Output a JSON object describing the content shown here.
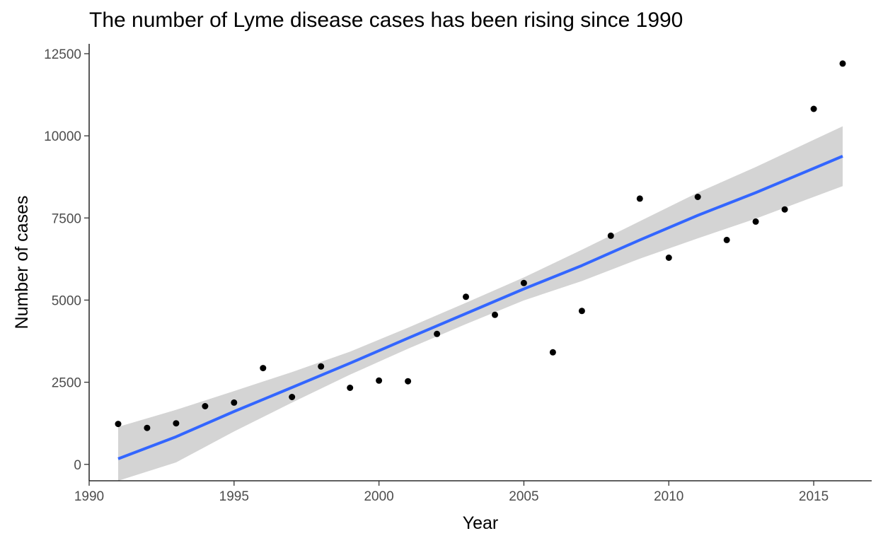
{
  "chart_data": {
    "type": "scatter",
    "title": "The number of Lyme disease cases has been rising since 1990",
    "xlabel": "Year",
    "ylabel": "Number of cases",
    "xlim": [
      1990,
      2017
    ],
    "ylim": [
      -500,
      12800
    ],
    "x_ticks": [
      1990,
      1995,
      2000,
      2005,
      2010,
      2015
    ],
    "y_ticks": [
      0,
      2500,
      5000,
      7500,
      10000,
      12500
    ],
    "grid": false,
    "colors": {
      "points": "#000000",
      "trend_line": "#3366ff",
      "confidence_band": "#d4d4d4",
      "axis": "#000000"
    },
    "points": [
      {
        "x": 1991,
        "y": 1230
      },
      {
        "x": 1992,
        "y": 1110
      },
      {
        "x": 1993,
        "y": 1250
      },
      {
        "x": 1994,
        "y": 1770
      },
      {
        "x": 1995,
        "y": 1880
      },
      {
        "x": 1996,
        "y": 2930
      },
      {
        "x": 1997,
        "y": 2050
      },
      {
        "x": 1998,
        "y": 2980
      },
      {
        "x": 1999,
        "y": 2330
      },
      {
        "x": 2000,
        "y": 2550
      },
      {
        "x": 2001,
        "y": 2530
      },
      {
        "x": 2002,
        "y": 3970
      },
      {
        "x": 2003,
        "y": 5100
      },
      {
        "x": 2004,
        "y": 4550
      },
      {
        "x": 2005,
        "y": 5520
      },
      {
        "x": 2006,
        "y": 3410
      },
      {
        "x": 2007,
        "y": 4670
      },
      {
        "x": 2008,
        "y": 6960
      },
      {
        "x": 2009,
        "y": 8090
      },
      {
        "x": 2010,
        "y": 6290
      },
      {
        "x": 2011,
        "y": 8140
      },
      {
        "x": 2012,
        "y": 6830
      },
      {
        "x": 2013,
        "y": 7390
      },
      {
        "x": 2014,
        "y": 7760
      },
      {
        "x": 2015,
        "y": 10820
      },
      {
        "x": 2016,
        "y": 12200
      }
    ],
    "trend_line": [
      {
        "x": 1991,
        "y": 170,
        "lower": -800,
        "upper": 1140
      },
      {
        "x": 1993,
        "y": 840,
        "lower": 60,
        "upper": 1660
      },
      {
        "x": 1995,
        "y": 1610,
        "lower": 1000,
        "upper": 2230
      },
      {
        "x": 1997,
        "y": 2340,
        "lower": 1880,
        "upper": 2810
      },
      {
        "x": 1999,
        "y": 3080,
        "lower": 2730,
        "upper": 3430
      },
      {
        "x": 2001,
        "y": 3840,
        "lower": 3520,
        "upper": 4160
      },
      {
        "x": 2003,
        "y": 4590,
        "lower": 4270,
        "upper": 4920
      },
      {
        "x": 2005,
        "y": 5340,
        "lower": 4990,
        "upper": 5690
      },
      {
        "x": 2007,
        "y": 6050,
        "lower": 5580,
        "upper": 6530
      },
      {
        "x": 2009,
        "y": 6830,
        "lower": 6260,
        "upper": 7400
      },
      {
        "x": 2011,
        "y": 7580,
        "lower": 6880,
        "upper": 8270
      },
      {
        "x": 2013,
        "y": 8270,
        "lower": 7480,
        "upper": 9050
      },
      {
        "x": 2015,
        "y": 9010,
        "lower": 8140,
        "upper": 9880
      },
      {
        "x": 2016,
        "y": 9380,
        "lower": 8470,
        "upper": 10290
      }
    ]
  }
}
